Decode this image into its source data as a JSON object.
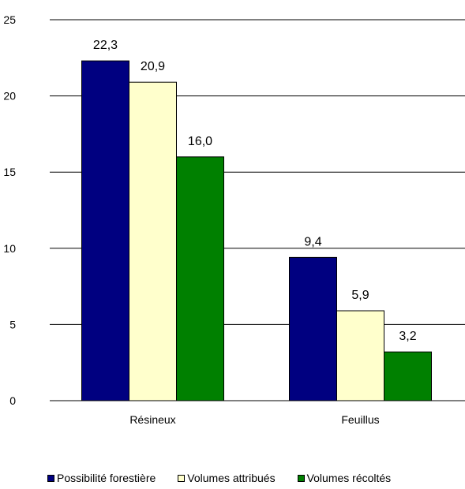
{
  "chart_data": {
    "type": "bar",
    "categories": [
      "Résineux",
      "Feuillus"
    ],
    "series": [
      {
        "name": "Possibilité forestière",
        "values": [
          22.3,
          9.4
        ],
        "labels": [
          "22,3",
          "9,4"
        ],
        "color": "#000080"
      },
      {
        "name": "Volumes attribués",
        "values": [
          20.9,
          5.9
        ],
        "labels": [
          "20,9",
          "5,9"
        ],
        "color": "#FFFFCC"
      },
      {
        "name": "Volumes récoltés",
        "values": [
          16.0,
          3.2
        ],
        "labels": [
          "16,0",
          "3,2"
        ],
        "color": "#008000"
      }
    ],
    "yticks": [
      "0",
      "5",
      "10",
      "15",
      "20",
      "25"
    ],
    "ylim": [
      0,
      25
    ],
    "grid": true,
    "legend_position": "bottom"
  }
}
